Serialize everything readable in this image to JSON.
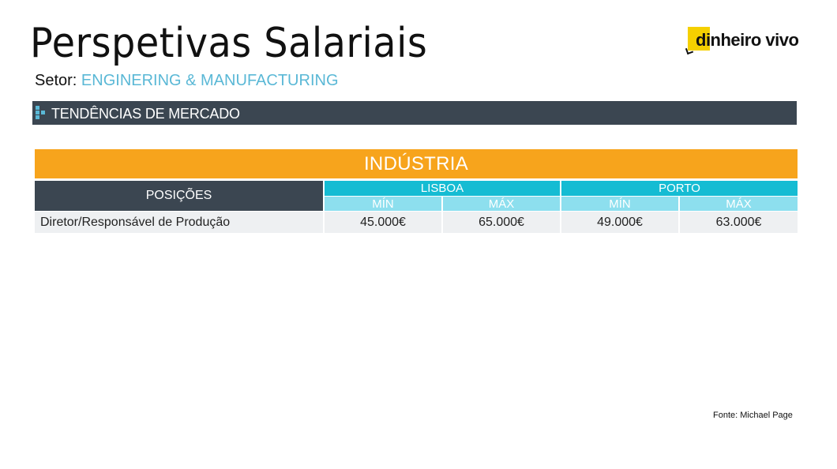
{
  "header": {
    "title": "Perspetivas Salariais",
    "sector_label": "Setor:",
    "sector_value": "ENGINERING & MANUFACTURING"
  },
  "logo": {
    "text": "dinheiro vivo",
    "accent": "#f5d000"
  },
  "section_bar": {
    "label": "TENDÊNCIAS DE MERCADO",
    "icon": "dots-icon"
  },
  "table": {
    "band_title": "INDÚSTRIA",
    "positions_header": "POSIÇÕES",
    "cities": [
      {
        "name": "LISBOA",
        "min_label": "MÍN",
        "max_label": "MÁX"
      },
      {
        "name": "PORTO",
        "min_label": "MÍN",
        "max_label": "MÁX"
      }
    ],
    "rows": [
      {
        "position": "Diretor/Responsável de Produção",
        "lisboa_min": "45.000€",
        "lisboa_max": "65.000€",
        "porto_min": "49.000€",
        "porto_max": "63.000€"
      }
    ]
  },
  "source": "Fonte:  Michael Page",
  "colors": {
    "band": "#f7a41c",
    "dark_header": "#3b4651",
    "city_header": "#15bcd3",
    "sub_header": "#8ddfee",
    "sector_accent": "#5ab8d6"
  }
}
